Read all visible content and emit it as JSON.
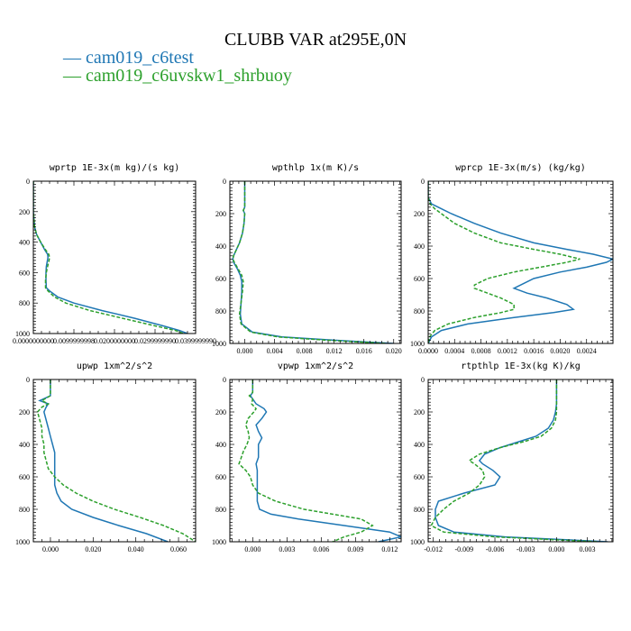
{
  "figure": {
    "title": "CLUBB VAR at295E,0N",
    "legend": [
      {
        "label": "cam019_c6test",
        "color": "#1f77b4",
        "dash": false
      },
      {
        "label": "cam019_c6uvskw1_shrbuoy",
        "color": "#2ca02c",
        "dash": true
      }
    ]
  },
  "chart_data": [
    {
      "type": "line",
      "title": "wprtp  1E-3x(m kg)/(s kg)",
      "xlim": [
        0,
        0.04
      ],
      "ylim": [
        1000,
        0
      ],
      "xticks": [
        0.0,
        0.01,
        0.02,
        0.03,
        0.04
      ],
      "xticklabels": [
        "0.0000000000",
        "0.0099999998",
        "0.0200000000",
        "0.0299999990",
        "0.0399999990"
      ],
      "yticks": [
        0,
        200,
        400,
        600,
        800,
        1000
      ],
      "series": [
        {
          "name": "cam019_c6test",
          "y": [
            0,
            100,
            200,
            300,
            350,
            400,
            450,
            480,
            500,
            530,
            560,
            600,
            650,
            700,
            720,
            760,
            800,
            850,
            900,
            950,
            980,
            1000
          ],
          "x": [
            0,
            0,
            0,
            0.0003,
            0.0008,
            0.0018,
            0.0028,
            0.0035,
            0.0036,
            0.0034,
            0.0032,
            0.0031,
            0.0031,
            0.0032,
            0.004,
            0.006,
            0.01,
            0.017,
            0.025,
            0.032,
            0.036,
            0.038
          ]
        },
        {
          "name": "cam019_c6uvskw1_shrbuoy",
          "y": [
            0,
            100,
            200,
            300,
            350,
            400,
            450,
            480,
            500,
            530,
            560,
            600,
            650,
            700,
            720,
            760,
            800,
            850,
            900,
            950,
            980,
            1000
          ],
          "x": [
            0,
            0,
            0,
            0.0003,
            0.0008,
            0.0018,
            0.003,
            0.0038,
            0.004,
            0.0038,
            0.0035,
            0.0032,
            0.003,
            0.003,
            0.0036,
            0.0052,
            0.008,
            0.014,
            0.022,
            0.03,
            0.035,
            0.037
          ]
        }
      ]
    },
    {
      "type": "line",
      "title": "wpthlp  1x(m K)/s",
      "xlim": [
        -0.002,
        0.021
      ],
      "ylim": [
        1000,
        0
      ],
      "xticks": [
        0.0,
        0.004,
        0.008,
        0.012,
        0.016,
        0.02
      ],
      "xticklabels": [
        "0.000",
        "0.004",
        "0.008",
        "0.012",
        "0.016",
        "0.020"
      ],
      "yticks": [
        0,
        200,
        400,
        600,
        800,
        1000
      ],
      "series": [
        {
          "name": "cam019_c6test",
          "y": [
            0,
            100,
            160,
            180,
            200,
            260,
            320,
            380,
            420,
            460,
            480,
            500,
            540,
            580,
            620,
            680,
            750,
            820,
            880,
            930,
            960,
            980,
            1000
          ],
          "x": [
            0,
            0,
            0,
            -0.0002,
            0,
            -0.0001,
            -0.0003,
            -0.0007,
            -0.0011,
            -0.0015,
            -0.0016,
            -0.0015,
            -0.001,
            -0.0006,
            -0.0004,
            -0.0004,
            -0.0005,
            -0.0006,
            -0.0004,
            0.001,
            0.005,
            0.012,
            0.02
          ]
        },
        {
          "name": "cam019_c6uvskw1_shrbuoy",
          "y": [
            0,
            100,
            160,
            180,
            200,
            260,
            320,
            380,
            420,
            460,
            480,
            500,
            540,
            580,
            620,
            680,
            750,
            820,
            880,
            930,
            960,
            980,
            1000
          ],
          "x": [
            0,
            0,
            0,
            -0.0002,
            0,
            -0.0001,
            -0.0003,
            -0.0007,
            -0.0011,
            -0.0015,
            -0.0016,
            -0.0014,
            -0.0009,
            -0.0004,
            -0.0002,
            -0.0003,
            -0.0005,
            -0.0007,
            -0.0005,
            0.0008,
            0.0045,
            0.011,
            0.019
          ]
        }
      ]
    },
    {
      "type": "line",
      "title": "wprcp  1E-3x(m/s) (kg/kg)",
      "xlim": [
        0,
        0.0028
      ],
      "ylim": [
        1000,
        0
      ],
      "xticks": [
        0.0,
        0.0004,
        0.0008,
        0.0012,
        0.0016,
        0.002,
        0.0024
      ],
      "xticklabels": [
        "0.0000",
        "0.0004",
        "0.0008",
        "0.0012",
        "0.0016",
        "0.0020",
        "0.0024"
      ],
      "yticks": [
        0,
        200,
        400,
        600,
        800,
        1000
      ],
      "series": [
        {
          "name": "cam019_c6test",
          "y": [
            0,
            100,
            140,
            170,
            200,
            260,
            320,
            380,
            420,
            450,
            480,
            500,
            530,
            560,
            600,
            640,
            660,
            690,
            720,
            760,
            790,
            810,
            840,
            880,
            920,
            960,
            1000
          ],
          "x": [
            0,
            0,
            5e-05,
            0.0002,
            0.00035,
            0.0007,
            0.0011,
            0.0016,
            0.0021,
            0.0025,
            0.0028,
            0.0027,
            0.0024,
            0.002,
            0.0016,
            0.0014,
            0.0013,
            0.0015,
            0.0018,
            0.0021,
            0.0022,
            0.0019,
            0.0013,
            0.0006,
            0.0002,
            5e-05,
            0
          ]
        },
        {
          "name": "cam019_c6uvskw1_shrbuoy",
          "y": [
            0,
            100,
            140,
            170,
            200,
            260,
            320,
            380,
            420,
            450,
            480,
            500,
            530,
            560,
            600,
            640,
            660,
            690,
            720,
            760,
            790,
            810,
            840,
            880,
            920,
            960,
            1000
          ],
          "x": [
            0,
            0,
            3e-05,
            0.0001,
            0.0002,
            0.0004,
            0.0007,
            0.0011,
            0.0016,
            0.002,
            0.0023,
            0.0021,
            0.0017,
            0.0013,
            0.0009,
            0.0007,
            0.0007,
            0.0009,
            0.0011,
            0.0013,
            0.0013,
            0.0011,
            0.0007,
            0.0003,
            0.0001,
            2e-05,
            0
          ]
        }
      ]
    },
    {
      "type": "line",
      "title": "upwp  1xm^2/s^2",
      "xlim": [
        -0.008,
        0.068
      ],
      "ylim": [
        1000,
        0
      ],
      "xticks": [
        0.0,
        0.02,
        0.04,
        0.06
      ],
      "xticklabels": [
        "0.000",
        "0.020",
        "0.040",
        "0.060"
      ],
      "yticks": [
        0,
        200,
        400,
        600,
        800,
        1000
      ],
      "series": [
        {
          "name": "cam019_c6test",
          "y": [
            0,
            100,
            130,
            150,
            170,
            200,
            250,
            300,
            350,
            400,
            450,
            500,
            550,
            600,
            650,
            700,
            750,
            800,
            850,
            900,
            950,
            1000
          ],
          "x": [
            0.0,
            0.0,
            -0.005,
            -0.001,
            -0.002,
            -0.003,
            -0.002,
            -0.001,
            0.0,
            0.001,
            0.002,
            0.002,
            0.002,
            0.002,
            0.002,
            0.003,
            0.005,
            0.01,
            0.02,
            0.032,
            0.045,
            0.055
          ]
        },
        {
          "name": "cam019_c6uvskw1_shrbuoy",
          "y": [
            0,
            100,
            130,
            150,
            170,
            200,
            250,
            300,
            350,
            400,
            450,
            500,
            550,
            600,
            650,
            700,
            750,
            800,
            850,
            900,
            950,
            1000
          ],
          "x": [
            0.0,
            0.0,
            -0.004,
            -0.001,
            -0.004,
            -0.006,
            -0.005,
            -0.004,
            -0.004,
            -0.003,
            -0.003,
            -0.002,
            -0.001,
            0.002,
            0.006,
            0.012,
            0.02,
            0.03,
            0.042,
            0.053,
            0.062,
            0.068
          ]
        }
      ]
    },
    {
      "type": "line",
      "title": "vpwp  1xm^2/s^2",
      "xlim": [
        -0.002,
        0.013
      ],
      "ylim": [
        1000,
        0
      ],
      "xticks": [
        0.0,
        0.003,
        0.006,
        0.009,
        0.012
      ],
      "xticklabels": [
        "0.000",
        "0.003",
        "0.006",
        "0.009",
        "0.012"
      ],
      "yticks": [
        0,
        200,
        400,
        600,
        800,
        1000
      ],
      "series": [
        {
          "name": "cam019_c6test",
          "y": [
            0,
            80,
            100,
            120,
            150,
            180,
            200,
            240,
            280,
            320,
            360,
            400,
            440,
            480,
            520,
            560,
            600,
            650,
            700,
            750,
            800,
            830,
            860,
            900,
            940,
            970,
            1000
          ],
          "x": [
            0.0,
            0.0,
            -0.0002,
            0.0,
            0.0003,
            0.001,
            0.0012,
            0.0008,
            0.0003,
            0.0005,
            0.0008,
            0.0005,
            0.0005,
            0.0005,
            0.0003,
            0.0004,
            0.0004,
            0.0004,
            0.0004,
            0.0004,
            0.0006,
            0.0016,
            0.004,
            0.008,
            0.012,
            0.013,
            0.011
          ]
        },
        {
          "name": "cam019_c6uvskw1_shrbuoy",
          "y": [
            0,
            80,
            100,
            120,
            150,
            180,
            200,
            240,
            280,
            320,
            360,
            400,
            440,
            480,
            520,
            560,
            600,
            650,
            700,
            750,
            800,
            830,
            860,
            900,
            940,
            970,
            1000
          ],
          "x": [
            0.0,
            0.0,
            -0.0003,
            0.0,
            -0.0001,
            0.0003,
            0.0001,
            -0.0004,
            -0.0006,
            -0.0004,
            -0.0003,
            -0.0005,
            -0.0008,
            -0.001,
            -0.0012,
            -0.0006,
            -0.0002,
            0.0,
            0.0005,
            0.002,
            0.0045,
            0.007,
            0.0095,
            0.0105,
            0.0095,
            0.008,
            0.007
          ]
        }
      ]
    },
    {
      "type": "line",
      "title": "rtpthlp  1E-3x(kg K)/kg",
      "xlim": [
        -0.0125,
        0.0055
      ],
      "ylim": [
        1000,
        0
      ],
      "xticks": [
        -0.012,
        -0.009,
        -0.006,
        -0.003,
        0.0,
        0.003
      ],
      "xticklabels": [
        "-0.012",
        "-0.009",
        "-0.006",
        "-0.003",
        "0.000",
        "0.003"
      ],
      "yticks": [
        0,
        200,
        400,
        600,
        800,
        1000
      ],
      "series": [
        {
          "name": "cam019_c6test",
          "y": [
            0,
            150,
            200,
            250,
            300,
            350,
            380,
            420,
            460,
            500,
            520,
            560,
            600,
            650,
            700,
            750,
            800,
            850,
            900,
            940,
            970,
            1000
          ],
          "x": [
            0.0,
            0.0,
            -0.0001,
            -0.0003,
            -0.0008,
            -0.002,
            -0.0035,
            -0.0055,
            -0.007,
            -0.0075,
            -0.0072,
            -0.0062,
            -0.0055,
            -0.006,
            -0.009,
            -0.0115,
            -0.0118,
            -0.0118,
            -0.0115,
            -0.01,
            -0.005,
            0.005
          ]
        },
        {
          "name": "cam019_c6uvskw1_shrbuoy",
          "y": [
            0,
            150,
            200,
            250,
            300,
            350,
            380,
            420,
            460,
            500,
            520,
            560,
            600,
            650,
            700,
            750,
            800,
            850,
            900,
            940,
            970,
            1000
          ],
          "x": [
            0.0,
            0.0,
            0.0,
            -0.0001,
            -0.0005,
            -0.0015,
            -0.003,
            -0.0055,
            -0.0075,
            -0.0085,
            -0.008,
            -0.0072,
            -0.007,
            -0.0075,
            -0.0085,
            -0.01,
            -0.011,
            -0.0118,
            -0.0122,
            -0.011,
            -0.006,
            0.004
          ]
        }
      ]
    }
  ]
}
